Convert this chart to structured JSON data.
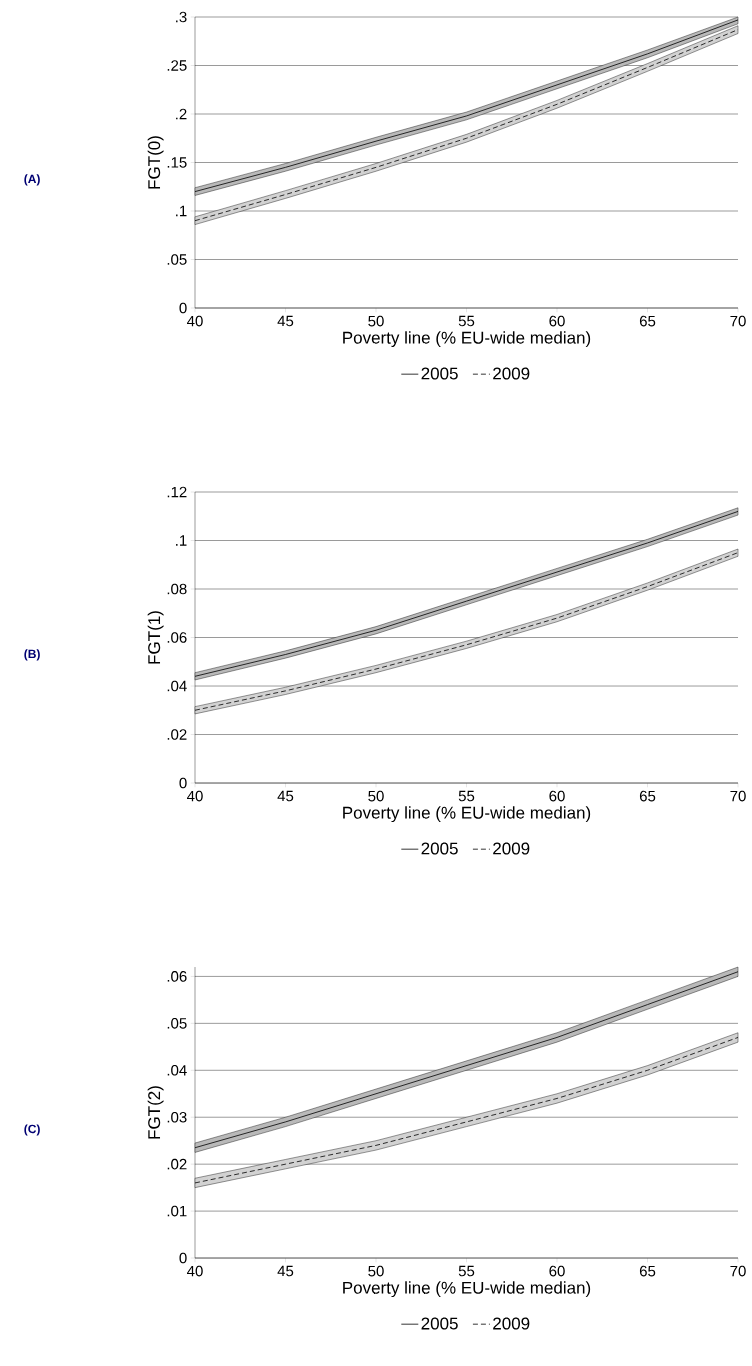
{
  "chart_data": [
    {
      "type": "line",
      "annotations": [
        "(A)"
      ],
      "xlabel": "Poverty line (% EU-wide median)",
      "ylabel": "FGT(0)",
      "xlim": [
        40,
        70
      ],
      "xticks": [
        40,
        45,
        50,
        55,
        60,
        65,
        70
      ],
      "ylim": [
        0,
        0.3
      ],
      "yticks": [
        {
          "value": 0,
          "label": "0"
        },
        {
          "value": 0.05,
          "label": ".05"
        },
        {
          "value": 0.1,
          "label": ".1"
        },
        {
          "value": 0.15,
          "label": ".15"
        },
        {
          "value": 0.2,
          "label": ".2"
        },
        {
          "value": 0.25,
          "label": ".25"
        },
        {
          "value": 0.3,
          "label": ".3"
        }
      ],
      "grid": "y",
      "legend": "bottom",
      "x": [
        40,
        45,
        50,
        55,
        60,
        65,
        70
      ],
      "series": [
        {
          "name": "2005",
          "color": "#000000",
          "line_style": "solid",
          "values": [
            0.12,
            0.145,
            0.172,
            0.198,
            0.23,
            0.262,
            0.297
          ],
          "lower": [
            0.116,
            0.141,
            0.168,
            0.194,
            0.226,
            0.258,
            0.293
          ],
          "upper": [
            0.124,
            0.149,
            0.176,
            0.202,
            0.234,
            0.266,
            0.3
          ]
        },
        {
          "name": "2009",
          "color": "#000000",
          "line_style": "dashed",
          "values": [
            0.09,
            0.117,
            0.145,
            0.175,
            0.21,
            0.248,
            0.287
          ],
          "lower": [
            0.086,
            0.113,
            0.141,
            0.171,
            0.206,
            0.244,
            0.283
          ],
          "upper": [
            0.094,
            0.121,
            0.149,
            0.179,
            0.214,
            0.252,
            0.291
          ]
        }
      ]
    },
    {
      "type": "line",
      "annotations": [
        "(B)"
      ],
      "xlabel": "Poverty line (% EU-wide median)",
      "ylabel": "FGT(1)",
      "xlim": [
        40,
        70
      ],
      "xticks": [
        40,
        45,
        50,
        55,
        60,
        65,
        70
      ],
      "ylim": [
        0,
        0.12
      ],
      "yticks": [
        {
          "value": 0,
          "label": "0"
        },
        {
          "value": 0.02,
          "label": ".02"
        },
        {
          "value": 0.04,
          "label": ".04"
        },
        {
          "value": 0.06,
          "label": ".06"
        },
        {
          "value": 0.08,
          "label": ".08"
        },
        {
          "value": 0.1,
          "label": ".1"
        },
        {
          "value": 0.12,
          "label": ".12"
        }
      ],
      "grid": "y",
      "legend": "bottom",
      "x": [
        40,
        45,
        50,
        55,
        60,
        65,
        70
      ],
      "series": [
        {
          "name": "2005",
          "color": "#000000",
          "line_style": "solid",
          "values": [
            0.044,
            0.053,
            0.063,
            0.075,
            0.087,
            0.099,
            0.112
          ],
          "lower": [
            0.0425,
            0.0515,
            0.0615,
            0.0735,
            0.0855,
            0.0975,
            0.1105
          ],
          "upper": [
            0.0455,
            0.0545,
            0.0645,
            0.0765,
            0.0885,
            0.1005,
            0.1135
          ]
        },
        {
          "name": "2009",
          "color": "#000000",
          "line_style": "dashed",
          "values": [
            0.03,
            0.038,
            0.047,
            0.057,
            0.068,
            0.081,
            0.095
          ],
          "lower": [
            0.0285,
            0.0365,
            0.0455,
            0.0555,
            0.0665,
            0.0795,
            0.0935
          ],
          "upper": [
            0.0315,
            0.0395,
            0.0485,
            0.0585,
            0.0695,
            0.0825,
            0.0965
          ]
        }
      ]
    },
    {
      "type": "line",
      "annotations": [
        "(C)"
      ],
      "xlabel": "Poverty line (% EU-wide median)",
      "ylabel": "FGT(2)",
      "xlim": [
        40,
        70
      ],
      "xticks": [
        40,
        45,
        50,
        55,
        60,
        65,
        70
      ],
      "ylim": [
        0,
        0.062
      ],
      "yticks": [
        {
          "value": 0,
          "label": "0"
        },
        {
          "value": 0.01,
          "label": ".01"
        },
        {
          "value": 0.02,
          "label": ".02"
        },
        {
          "value": 0.03,
          "label": ".03"
        },
        {
          "value": 0.04,
          "label": ".04"
        },
        {
          "value": 0.05,
          "label": ".05"
        },
        {
          "value": 0.06,
          "label": ".06"
        }
      ],
      "grid": "y",
      "legend": "bottom",
      "x": [
        40,
        45,
        50,
        55,
        60,
        65,
        70
      ],
      "series": [
        {
          "name": "2005",
          "color": "#000000",
          "line_style": "solid",
          "values": [
            0.0235,
            0.029,
            0.035,
            0.041,
            0.047,
            0.054,
            0.061
          ],
          "lower": [
            0.0225,
            0.028,
            0.034,
            0.04,
            0.046,
            0.053,
            0.06
          ],
          "upper": [
            0.0245,
            0.03,
            0.036,
            0.042,
            0.048,
            0.055,
            0.062
          ]
        },
        {
          "name": "2009",
          "color": "#000000",
          "line_style": "dashed",
          "values": [
            0.016,
            0.02,
            0.024,
            0.029,
            0.034,
            0.04,
            0.047
          ],
          "lower": [
            0.015,
            0.019,
            0.023,
            0.028,
            0.033,
            0.039,
            0.046
          ],
          "upper": [
            0.017,
            0.021,
            0.025,
            0.03,
            0.035,
            0.041,
            0.048
          ]
        }
      ]
    }
  ]
}
